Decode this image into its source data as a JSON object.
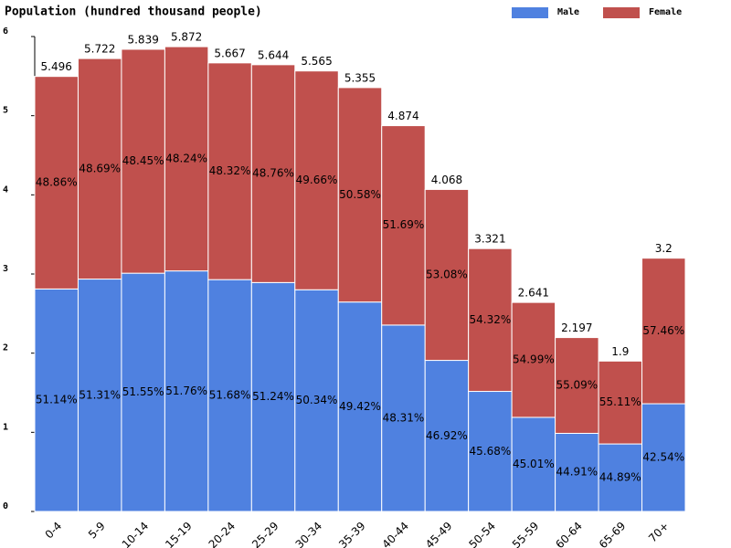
{
  "chart_data": {
    "type": "stacked_bar",
    "title": "Population (hundred thousand people)",
    "categories": [
      "0-4",
      "5-9",
      "10-14",
      "15-19",
      "20-24",
      "25-29",
      "30-34",
      "35-39",
      "40-44",
      "45-49",
      "50-54",
      "55-59",
      "60-64",
      "65-69",
      "70+"
    ],
    "totals": [
      5.496,
      5.722,
      5.839,
      5.872,
      5.667,
      5.644,
      5.565,
      5.355,
      4.874,
      4.068,
      3.321,
      2.641,
      2.197,
      1.9,
      3.2
    ],
    "series": [
      {
        "name": "Male",
        "color": "#4f81e0",
        "values": [
          2.811,
          2.936,
          3.01,
          3.039,
          2.929,
          2.892,
          2.801,
          2.646,
          2.355,
          1.909,
          1.517,
          1.189,
          0.987,
          0.853,
          1.361
        ],
        "shares": [
          51.14,
          51.31,
          51.55,
          51.76,
          51.68,
          51.24,
          50.34,
          49.42,
          48.31,
          46.92,
          45.68,
          45.01,
          44.91,
          44.89,
          42.54
        ],
        "share_labels": [
          "51.14%",
          "51.31%",
          "51.55%",
          "51.76%",
          "51.68%",
          "51.24%",
          "50.34%",
          "49.42%",
          "48.31%",
          "46.92%",
          "45.68%",
          "45.01%",
          "44.91%",
          "44.89%",
          "42.54%"
        ]
      },
      {
        "name": "Female",
        "color": "#c0504d",
        "values": [
          2.685,
          2.786,
          2.829,
          2.833,
          2.738,
          2.752,
          2.764,
          2.709,
          2.519,
          2.159,
          1.804,
          1.452,
          1.21,
          1.047,
          1.839
        ],
        "shares": [
          48.86,
          48.69,
          48.45,
          48.24,
          48.32,
          48.76,
          49.66,
          50.58,
          51.69,
          53.08,
          54.32,
          54.99,
          55.09,
          55.11,
          57.46
        ],
        "share_labels": [
          "48.86%",
          "48.69%",
          "48.45%",
          "48.24%",
          "48.32%",
          "48.76%",
          "49.66%",
          "50.58%",
          "51.69%",
          "53.08%",
          "54.32%",
          "54.99%",
          "55.09%",
          "55.11%",
          "57.46%"
        ]
      }
    ],
    "ylim": [
      0,
      6
    ],
    "yticks": [
      0,
      1,
      2,
      3,
      4,
      5,
      6
    ]
  }
}
